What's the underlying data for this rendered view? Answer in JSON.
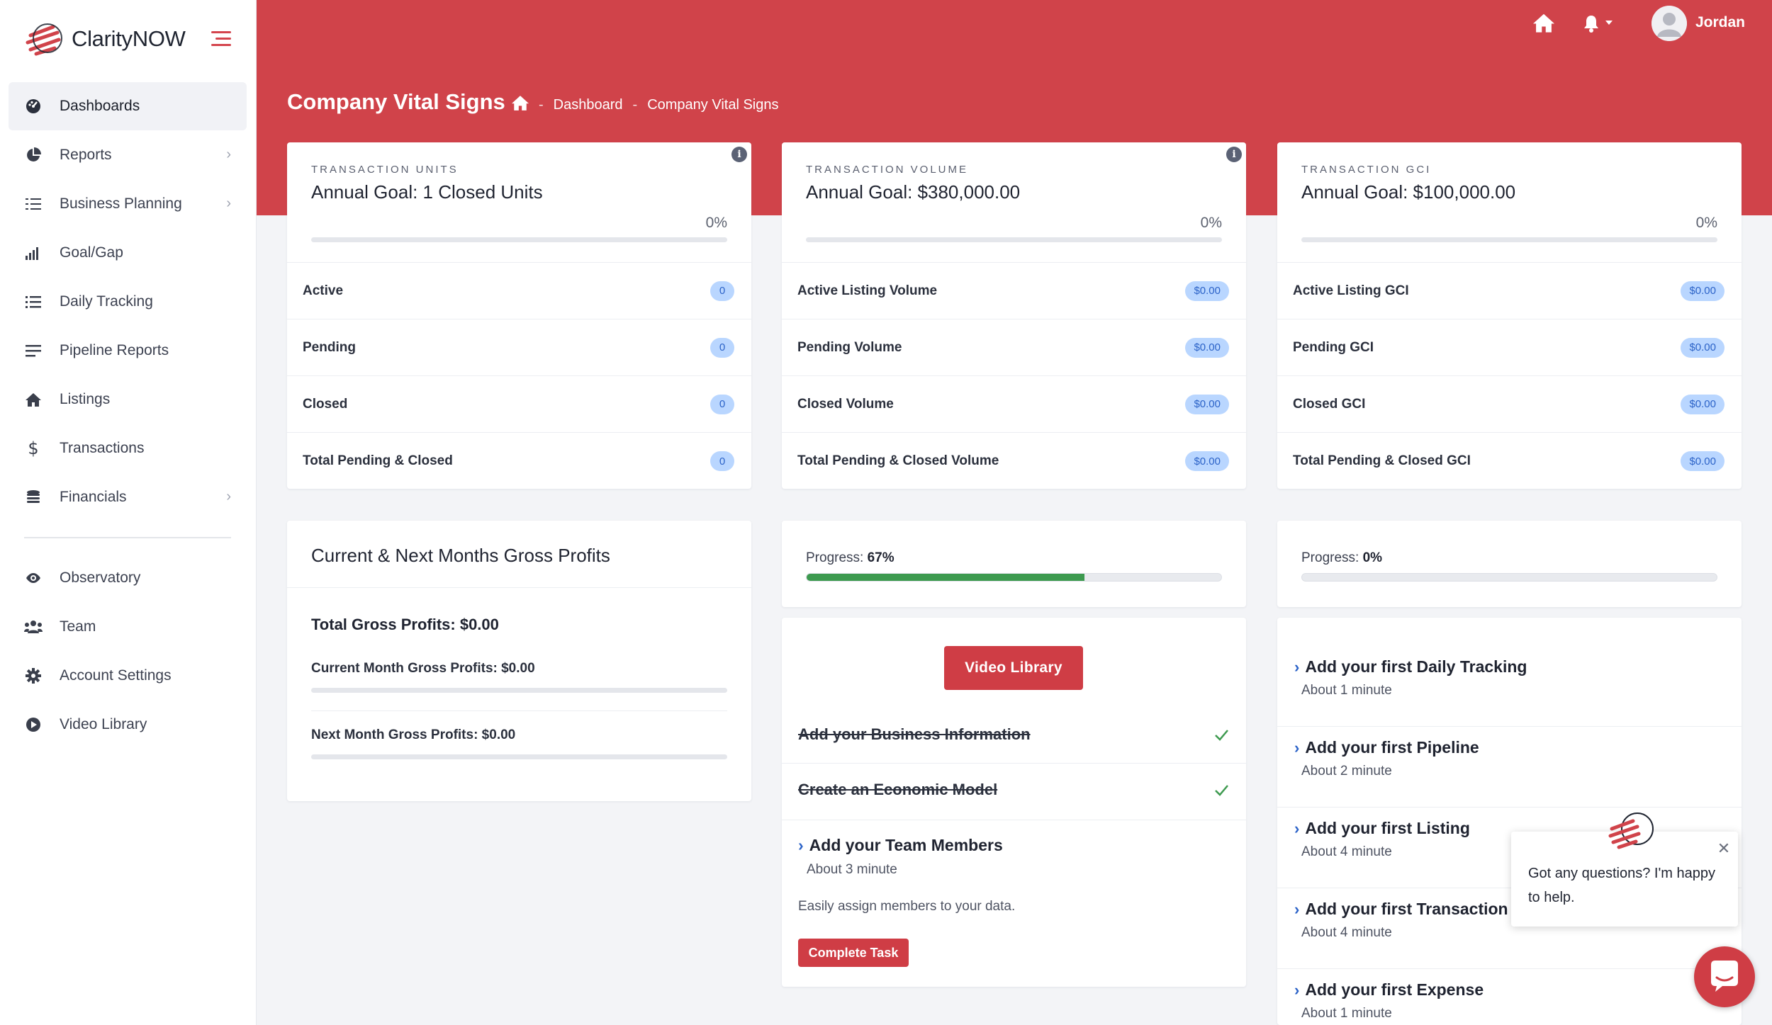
{
  "app": {
    "name": "ClarityNOW"
  },
  "sidebar": {
    "items": [
      {
        "label": "Dashboards",
        "icon": "dashboard-icon"
      },
      {
        "label": "Reports",
        "icon": "pie-chart-icon"
      },
      {
        "label": "Business Planning",
        "icon": "list-check-icon"
      },
      {
        "label": "Goal/Gap",
        "icon": "signal-bars-icon"
      },
      {
        "label": "Daily Tracking",
        "icon": "list-icon"
      },
      {
        "label": "Pipeline Reports",
        "icon": "lines-icon"
      },
      {
        "label": "Listings",
        "icon": "home-icon"
      },
      {
        "label": "Transactions",
        "icon": "dollar-icon"
      },
      {
        "label": "Financials",
        "icon": "coins-icon"
      }
    ],
    "secondary": [
      {
        "label": "Observatory",
        "icon": "eye-icon"
      },
      {
        "label": "Team",
        "icon": "users-icon"
      },
      {
        "label": "Account Settings",
        "icon": "gear-icon"
      },
      {
        "label": "Video Library",
        "icon": "play-circle-icon"
      }
    ]
  },
  "header": {
    "user": "Jordan",
    "title": "Company Vital Signs"
  },
  "breadcrumb": {
    "dashboard": "Dashboard",
    "current": "Company Vital Signs",
    "sep": "-"
  },
  "kpi": [
    {
      "caption": "TRANSACTION UNITS",
      "goal": "Annual Goal: 1 Closed Units",
      "percent": "0%",
      "progress": 0,
      "rows": [
        {
          "label": "Active",
          "value": "0"
        },
        {
          "label": "Pending",
          "value": "0"
        },
        {
          "label": "Closed",
          "value": "0"
        },
        {
          "label": "Total Pending & Closed",
          "value": "0"
        }
      ]
    },
    {
      "caption": "TRANSACTION VOLUME",
      "goal": "Annual Goal: $380,000.00",
      "percent": "0%",
      "progress": 0,
      "rows": [
        {
          "label": "Active Listing Volume",
          "value": "$0.00"
        },
        {
          "label": "Pending Volume",
          "value": "$0.00"
        },
        {
          "label": "Closed Volume",
          "value": "$0.00"
        },
        {
          "label": "Total Pending & Closed Volume",
          "value": "$0.00"
        }
      ]
    },
    {
      "caption": "TRANSACTION GCI",
      "goal": "Annual Goal: $100,000.00",
      "percent": "0%",
      "progress": 0,
      "rows": [
        {
          "label": "Active Listing GCI",
          "value": "$0.00"
        },
        {
          "label": "Pending GCI",
          "value": "$0.00"
        },
        {
          "label": "Closed GCI",
          "value": "$0.00"
        },
        {
          "label": "Total Pending & Closed GCI",
          "value": "$0.00"
        }
      ]
    }
  ],
  "gross": {
    "title": "Current & Next Months Gross Profits",
    "total": "Total Gross Profits: $0.00",
    "current": "Current Month Gross Profits: $0.00",
    "next": "Next Month Gross Profits: $0.00"
  },
  "tasks": {
    "progress_label": "Progress:",
    "progress_value": "67%",
    "progress": 0.67,
    "video_button": "Video Library",
    "done": [
      "Add your Business Information",
      "Create an Economic Model"
    ],
    "open": {
      "title": "Add your Team Members",
      "sub": "About 3 minute",
      "desc": "Easily assign members to your data.",
      "button": "Complete Task"
    }
  },
  "onboarding": {
    "progress_label": "Progress:",
    "progress_value": "0%",
    "progress": 0,
    "items": [
      {
        "title": "Add your first Daily Tracking",
        "sub": "About 1 minute"
      },
      {
        "title": "Add your first Pipeline",
        "sub": "About 2 minute"
      },
      {
        "title": "Add your first Listing",
        "sub": "About 4 minute"
      },
      {
        "title": "Add your first Transaction",
        "sub": "About 4 minute"
      },
      {
        "title": "Add your first Expense",
        "sub": "About 1 minute"
      }
    ]
  },
  "chat": {
    "message": "Got any questions? I'm happy to help."
  },
  "colors": {
    "brand": "#d0434a",
    "badge_bg": "#b9d6ff",
    "success": "#3d9a4f"
  }
}
